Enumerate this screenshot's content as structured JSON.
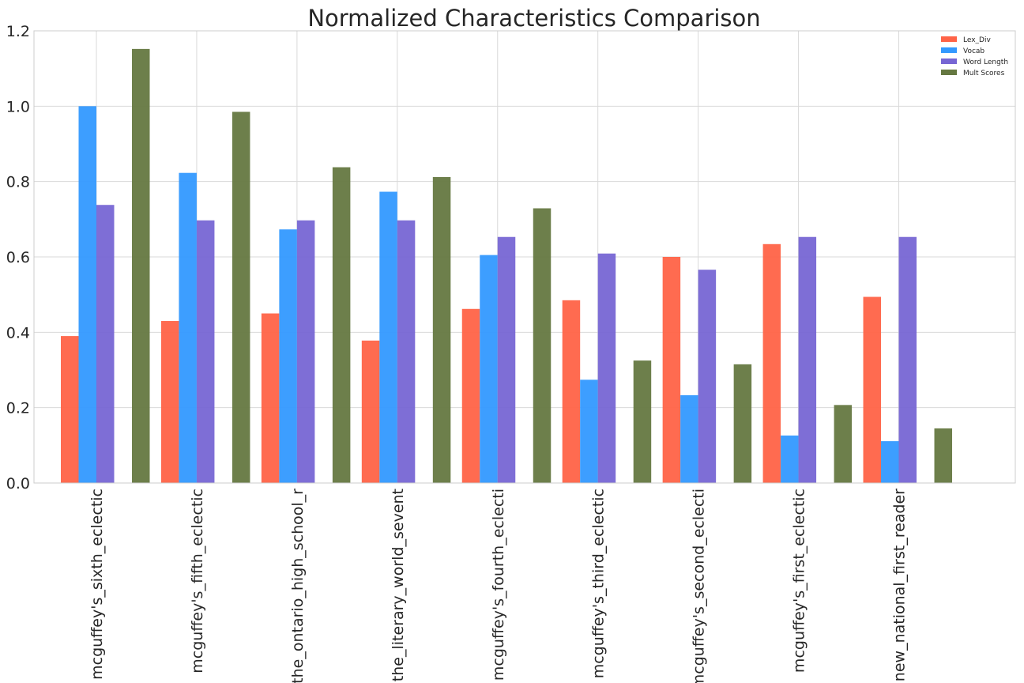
{
  "chart_data": {
    "type": "bar",
    "title": "Normalized Characteristics Comparison",
    "xlabel": "",
    "ylabel": "",
    "ylim": [
      0,
      1.2
    ],
    "yticks": [
      "0.0",
      "0.2",
      "0.4",
      "0.6",
      "0.8",
      "1.0",
      "1.2"
    ],
    "grid": true,
    "legend_position": "top-right",
    "categories": [
      "mcguffey's_sixth_eclectic",
      "mcguffey's_fifth_eclectic",
      "the_ontario_high_school_r",
      "the_literary_world_sevent",
      "mcguffey's_fourth_eclecti",
      "mcguffey's_third_eclectic",
      "mcguffey's_second_eclecti",
      "mcguffey's_first_eclectic",
      "new_national_first_reader"
    ],
    "series": [
      {
        "name": "Lex_Div",
        "color": "#ff6347",
        "values": [
          0.39,
          0.43,
          0.45,
          0.378,
          0.462,
          0.485,
          0.6,
          0.634,
          0.494
        ]
      },
      {
        "name": "Vocab",
        "color": "#3399ff",
        "values": [
          1.0,
          0.823,
          0.673,
          0.773,
          0.605,
          0.274,
          0.233,
          0.126,
          0.111
        ]
      },
      {
        "name": "Word Length",
        "color": "#7766d4",
        "values": [
          0.738,
          0.697,
          0.697,
          0.697,
          0.653,
          0.609,
          0.566,
          0.653,
          0.653
        ]
      },
      {
        "name": "Mult Scores",
        "color": "#657841",
        "values": [
          1.152,
          0.985,
          0.838,
          0.812,
          0.729,
          0.325,
          0.315,
          0.207,
          0.145
        ]
      }
    ]
  }
}
